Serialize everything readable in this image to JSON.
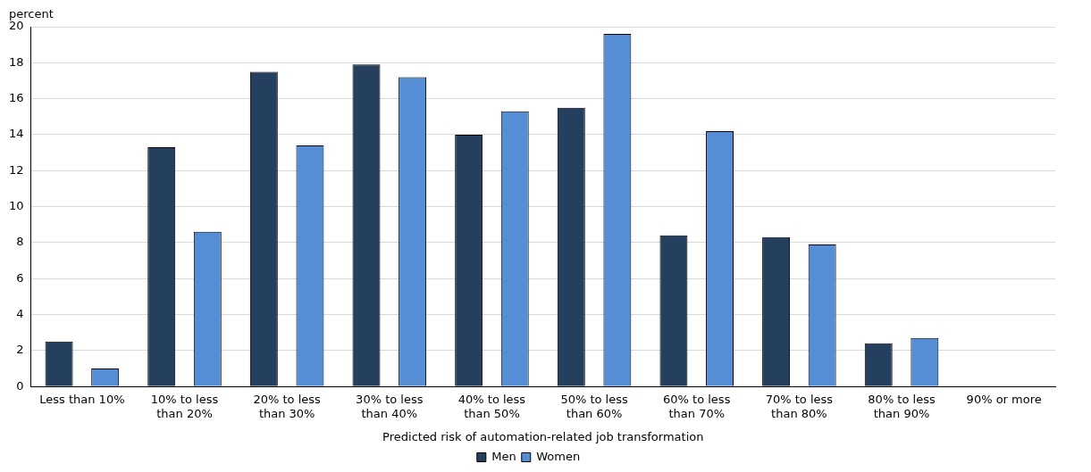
{
  "chart_data": {
    "type": "bar",
    "ylabel": "percent",
    "xlabel": "Predicted risk of automation-related job transformation",
    "categories": [
      "Less than 10%",
      "10% to less than 20%",
      "20% to less than 30%",
      "30% to less than 40%",
      "40% to less than 50%",
      "50% to less than 60%",
      "60% to less than 70%",
      "70% to less than 80%",
      "80% to less than 90%",
      "90% or more"
    ],
    "series": [
      {
        "name": "Men",
        "color": "#253f5f",
        "values": [
          2.5,
          13.3,
          17.5,
          17.9,
          14.0,
          15.5,
          8.4,
          8.3,
          2.4,
          null
        ]
      },
      {
        "name": "Women",
        "color": "#558ed5",
        "values": [
          1.0,
          8.6,
          13.4,
          17.2,
          15.3,
          19.6,
          14.2,
          7.9,
          2.7,
          null
        ]
      }
    ],
    "ylim": [
      0,
      20
    ],
    "yticks": [
      0,
      2,
      4,
      6,
      8,
      10,
      12,
      14,
      16,
      18,
      20
    ],
    "grid": "y",
    "legend": "bottom"
  }
}
